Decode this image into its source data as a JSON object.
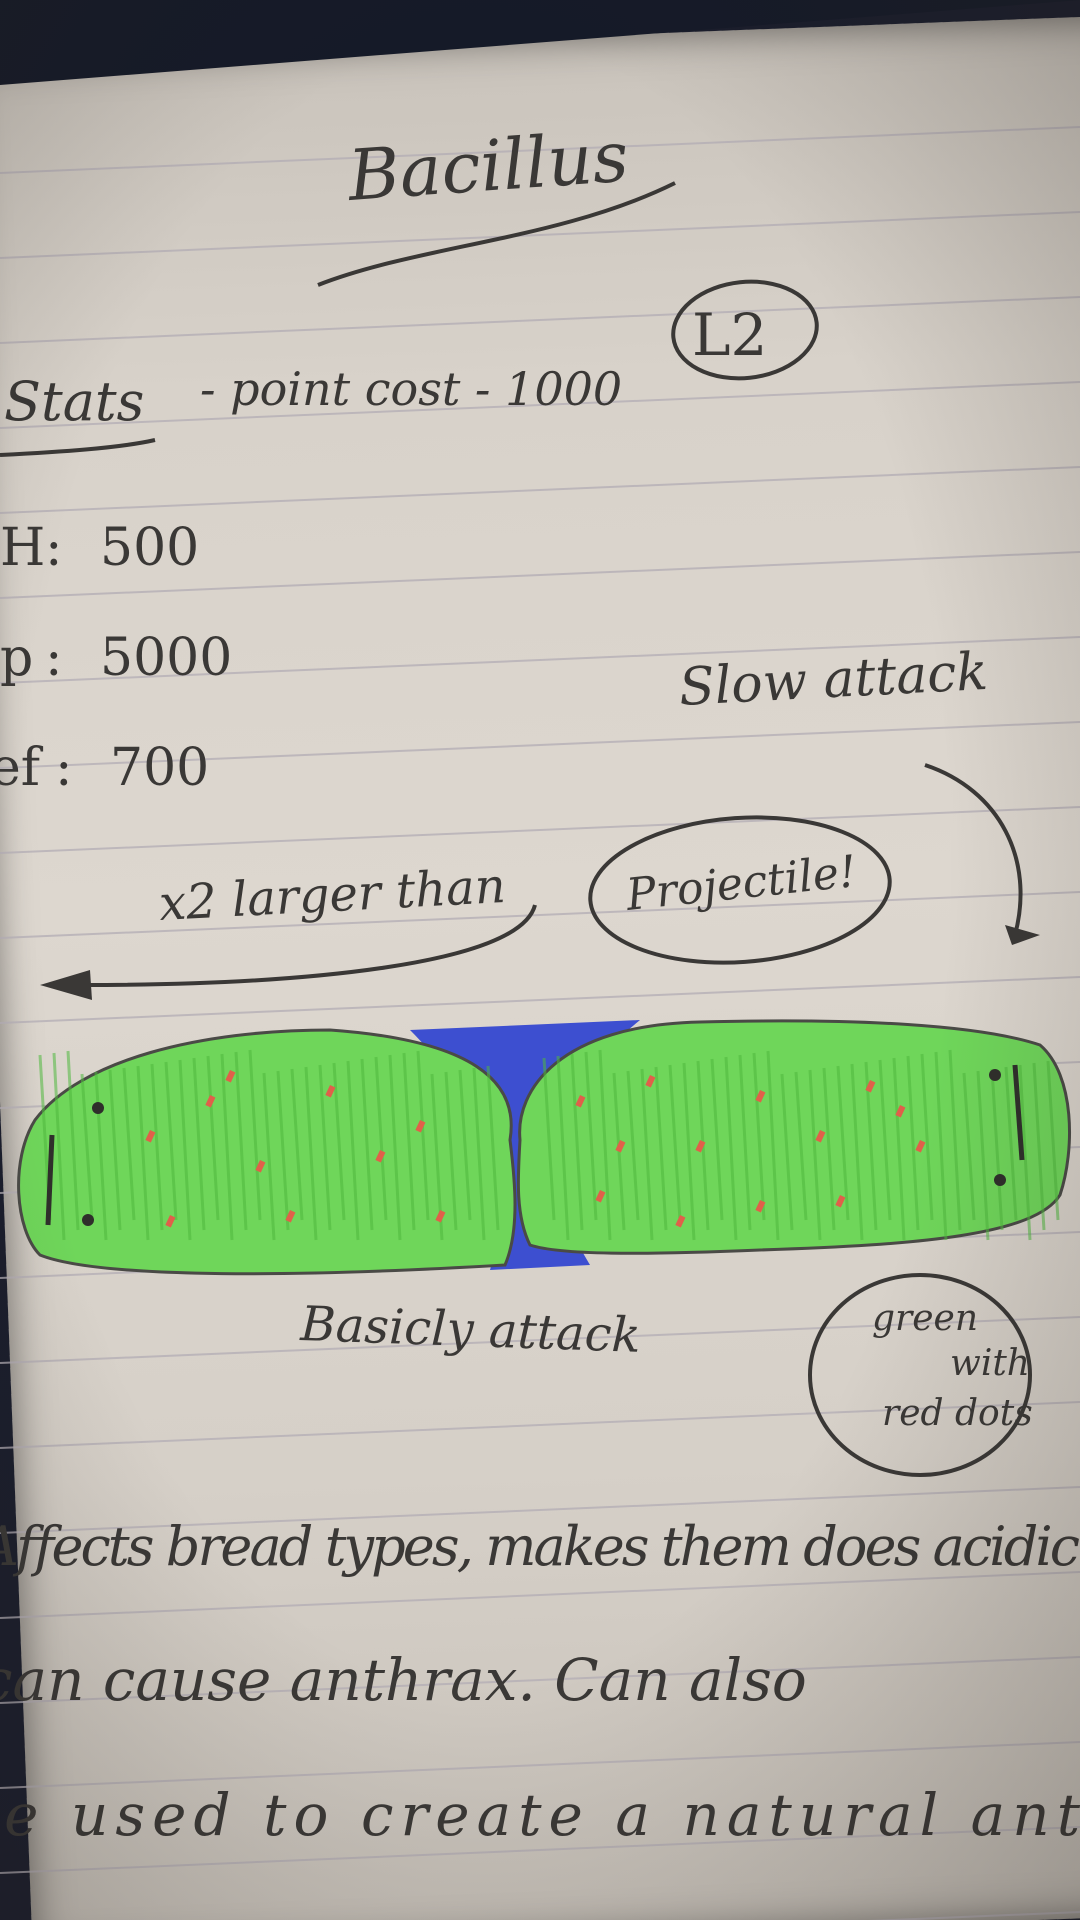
{
  "notebook": {
    "title": "Bacillus",
    "level_badge": "L2",
    "stats_heading": "Stats",
    "point_cost": "- point cost - 1000",
    "stats": [
      {
        "label": "H",
        "value": "500"
      },
      {
        "label": "p",
        "value": "5000"
      },
      {
        "label": "ef",
        "value": "700"
      }
    ],
    "slow_attack": "Slow attack",
    "size_note": "x2 larger than",
    "projectile": "Projectile!",
    "basic_attack": "Basicly attack",
    "color_note": [
      "green",
      "with",
      "red dots"
    ],
    "description_lines": [
      "Affects bread types, makes them does acidic",
      "can cause anthrax. Can also",
      "be used to create a natural ant"
    ],
    "colors": {
      "cell_green": "#6fd65a",
      "cell_dark_green": "#4fb83e",
      "junction_blue": "#3d4fd0",
      "dot_red": "#e0604a",
      "ink": "#3a3836",
      "paper": "#dcd6ce",
      "rule_line": "#b3adb5"
    }
  }
}
